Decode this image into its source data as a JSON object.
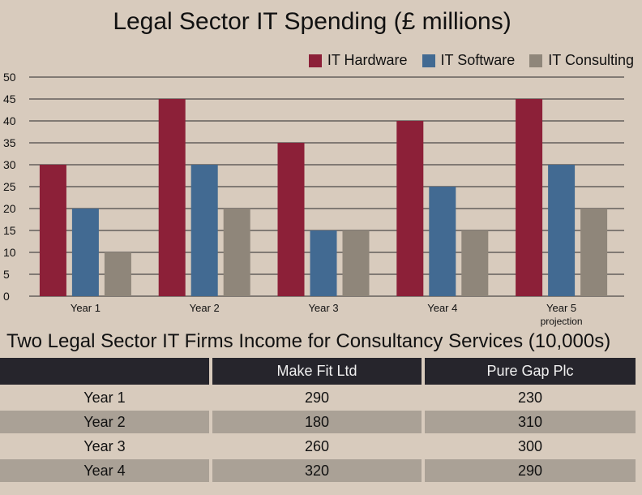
{
  "chart_data": {
    "type": "bar",
    "title": "Legal Sector IT Spending (£ millions)",
    "categories": [
      "Year 1",
      "Year 2",
      "Year 3",
      "Year 4",
      "Year 5"
    ],
    "category_sublabels": [
      "",
      "",
      "",
      "",
      "projection"
    ],
    "series": [
      {
        "name": "IT Hardware",
        "color": "#8c2038",
        "values": [
          30,
          45,
          35,
          40,
          45
        ]
      },
      {
        "name": "IT Software",
        "color": "#426a92",
        "values": [
          20,
          30,
          15,
          25,
          30
        ]
      },
      {
        "name": "IT Consulting",
        "color": "#8f867a",
        "values": [
          10,
          20,
          15,
          15,
          20
        ]
      }
    ],
    "ylim": [
      0,
      50
    ],
    "yticks": [
      "0",
      "5",
      "10",
      "15",
      "20",
      "25",
      "30",
      "35",
      "40",
      "45",
      "50"
    ],
    "grid": true,
    "legend": "top-right"
  },
  "table": {
    "title": "Two Legal Sector IT Firms Income for Consultancy Services (10,000s)",
    "headers": [
      "",
      "Make Fit Ltd",
      "Pure Gap Plc"
    ],
    "rows": [
      [
        "Year 1",
        "290",
        "230"
      ],
      [
        "Year 2",
        "180",
        "310"
      ],
      [
        "Year 3",
        "260",
        "300"
      ],
      [
        "Year 4",
        "320",
        "290"
      ]
    ]
  }
}
